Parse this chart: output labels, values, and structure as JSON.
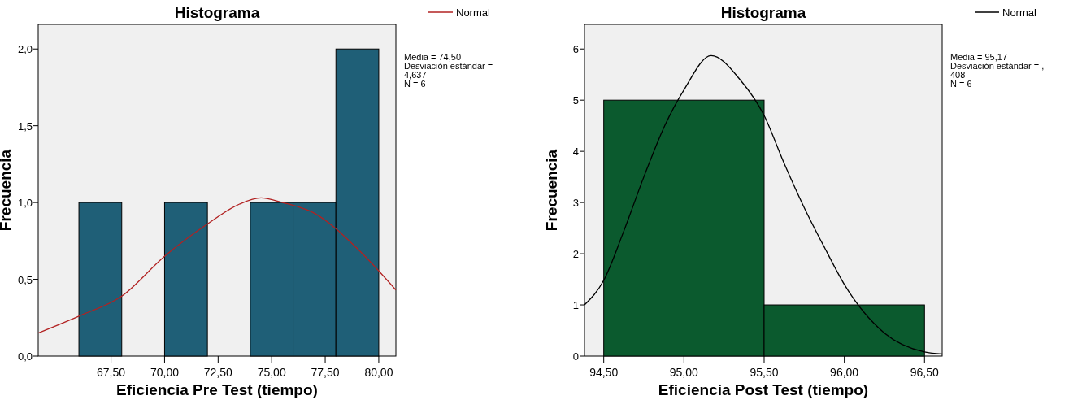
{
  "chart_data": [
    {
      "type": "histogram",
      "title": "Histograma",
      "xlabel": "Eficiencia Pre Test (tiempo)",
      "ylabel": "Frecuencia",
      "bins": [
        66,
        68,
        70,
        72,
        74,
        76,
        78,
        80
      ],
      "values": [
        1,
        0,
        1,
        0,
        1,
        1,
        2
      ],
      "color": "#1f5f77",
      "xlim": [
        64.1,
        80.8
      ],
      "ylim": [
        0,
        2.16
      ],
      "xticks": [
        {
          "value": 67.5,
          "label": "67,50"
        },
        {
          "value": 70,
          "label": "70,00"
        },
        {
          "value": 72.5,
          "label": "72,50"
        },
        {
          "value": 75,
          "label": "75,00"
        },
        {
          "value": 77.5,
          "label": "77,50"
        },
        {
          "value": 80,
          "label": "80,00"
        }
      ],
      "yticks": [
        {
          "value": 0,
          "label": "0,0"
        },
        {
          "value": 0.5,
          "label": "0,5"
        },
        {
          "value": 1,
          "label": "1,0"
        },
        {
          "value": 1.5,
          "label": "1,5"
        },
        {
          "value": 2,
          "label": "2,0"
        }
      ],
      "legend": "top right",
      "annotations": [
        "Media = 74,50\nDesviación estándar =\n4,637\nN = 6"
      ],
      "series": [
        {
          "type": "line",
          "name": "Normal",
          "color": "#b22222",
          "x": [
            64.1,
            66,
            68,
            70,
            72,
            73.5,
            74.5,
            75.5,
            77,
            79,
            80.8
          ],
          "values": [
            0.15,
            0.26,
            0.39,
            0.65,
            0.86,
            0.99,
            1.03,
            1.0,
            0.93,
            0.7,
            0.43
          ]
        }
      ]
    },
    {
      "type": "histogram",
      "title": "Histograma",
      "xlabel": "Eficiencia Post Test (tiempo)",
      "ylabel": "Frecuencia",
      "bins": [
        94.5,
        95.5,
        96.5
      ],
      "values": [
        5,
        1
      ],
      "color": "#0b5a2e",
      "xlim": [
        94.38,
        96.61
      ],
      "ylim": [
        0,
        6.48
      ],
      "xticks": [
        {
          "value": 94.5,
          "label": "94,50"
        },
        {
          "value": 95,
          "label": "95,00"
        },
        {
          "value": 95.5,
          "label": "95,50"
        },
        {
          "value": 96,
          "label": "96,00"
        },
        {
          "value": 96.5,
          "label": "96,50"
        }
      ],
      "yticks": [
        0,
        1,
        2,
        3,
        4,
        5,
        6
      ],
      "legend": "top right",
      "annotations": [
        "Media = 95,17\nDesviación estándar = ,\n408\nN = 6"
      ],
      "series": [
        {
          "type": "line",
          "name": "Normal",
          "color": "#000000",
          "x": [
            94.38,
            94.5,
            94.62,
            94.75,
            94.88,
            95.0,
            95.17,
            95.35,
            95.5,
            95.62,
            95.75,
            95.88,
            96.0,
            96.25,
            96.5,
            96.61
          ],
          "values": [
            1.0,
            1.48,
            2.4,
            3.5,
            4.5,
            5.2,
            5.87,
            5.4,
            4.7,
            3.8,
            2.9,
            2.1,
            1.4,
            0.45,
            0.08,
            0.04
          ]
        }
      ]
    }
  ]
}
